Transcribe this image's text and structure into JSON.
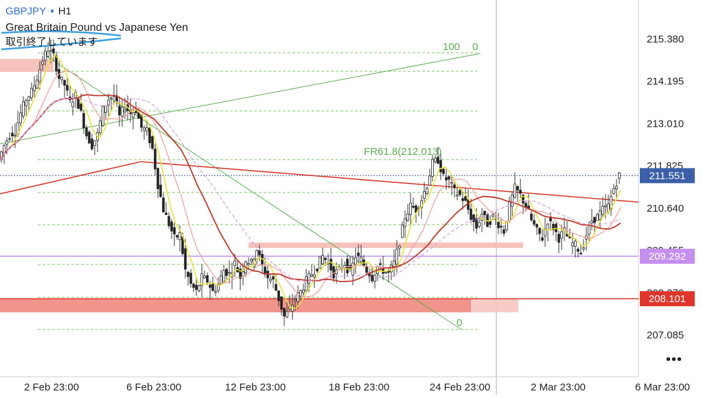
{
  "header": {
    "symbol": "GBPJPY",
    "caret": "▾",
    "timeframe": "H1",
    "description": "Great Britain Pound vs Japanese Yen",
    "status": "取引終了しています"
  },
  "more_icon": "•••",
  "chart_data": {
    "type": "candlestick",
    "symbol": "GBPJPY",
    "timeframe": "H1",
    "y_ticks": [
      "215.380",
      "214.195",
      "213.010",
      "211.825",
      "210.640",
      "209.455",
      "208.270",
      "207.085"
    ],
    "y_range": [
      206.3,
      215.95
    ],
    "x_ticks": [
      "2 Feb 23:00",
      "6 Feb 23:00",
      "12 Feb 23:00",
      "18 Feb 23:00",
      "24 Feb 23:00",
      "2 Mar 23:00",
      "6 Mar 23:00"
    ],
    "price_tags": [
      {
        "label": "211.551",
        "value": 211.551,
        "color": "#3b5fa8"
      },
      {
        "label": "209.292",
        "value": 209.292,
        "color": "#c58ff0"
      },
      {
        "label": "208.101",
        "value": 208.101,
        "color": "#e0352a"
      }
    ],
    "fib_labels": [
      {
        "label": "100",
        "level": "0"
      },
      {
        "label": "FR61.8(212.013)"
      },
      {
        "label": "0"
      }
    ],
    "close_path": [
      [
        0,
        212.0
      ],
      [
        8,
        212.4
      ],
      [
        16,
        212.7
      ],
      [
        24,
        212.8
      ],
      [
        32,
        213.3
      ],
      [
        40,
        213.7
      ],
      [
        48,
        213.9
      ],
      [
        56,
        214.3
      ],
      [
        64,
        214.8
      ],
      [
        72,
        215.1
      ],
      [
        80,
        214.9
      ],
      [
        88,
        214.3
      ],
      [
        96,
        214.1
      ],
      [
        104,
        213.6
      ],
      [
        112,
        213.8
      ],
      [
        120,
        213.3
      ],
      [
        128,
        212.7
      ],
      [
        136,
        212.4
      ],
      [
        144,
        212.7
      ],
      [
        152,
        213.4
      ],
      [
        160,
        213.7
      ],
      [
        168,
        213.8
      ],
      [
        176,
        213.2
      ],
      [
        184,
        213.5
      ],
      [
        192,
        213.3
      ],
      [
        200,
        213.4
      ],
      [
        208,
        212.9
      ],
      [
        216,
        212.8
      ],
      [
        224,
        212.3
      ],
      [
        232,
        211.3
      ],
      [
        240,
        210.6
      ],
      [
        248,
        210.2
      ],
      [
        256,
        209.8
      ],
      [
        264,
        209.9
      ],
      [
        272,
        208.9
      ],
      [
        280,
        208.5
      ],
      [
        288,
        208.3
      ],
      [
        296,
        208.7
      ],
      [
        304,
        208.6
      ],
      [
        312,
        208.3
      ],
      [
        320,
        208.5
      ],
      [
        328,
        208.9
      ],
      [
        336,
        208.8
      ],
      [
        344,
        209.1
      ],
      [
        352,
        208.7
      ],
      [
        360,
        209.2
      ],
      [
        368,
        209.1
      ],
      [
        376,
        209.5
      ],
      [
        384,
        209.0
      ],
      [
        392,
        208.7
      ],
      [
        400,
        208.6
      ],
      [
        408,
        208.1
      ],
      [
        416,
        207.6
      ],
      [
        424,
        207.8
      ],
      [
        432,
        208.1
      ],
      [
        440,
        208.3
      ],
      [
        448,
        208.6
      ],
      [
        456,
        208.8
      ],
      [
        464,
        209.0
      ],
      [
        472,
        209.3
      ],
      [
        480,
        209.1
      ],
      [
        488,
        208.8
      ],
      [
        496,
        208.9
      ],
      [
        504,
        209.1
      ],
      [
        512,
        208.8
      ],
      [
        520,
        209.3
      ],
      [
        528,
        209.2
      ],
      [
        536,
        208.9
      ],
      [
        544,
        208.7
      ],
      [
        552,
        209.0
      ],
      [
        560,
        208.9
      ],
      [
        568,
        208.8
      ],
      [
        576,
        209.1
      ],
      [
        584,
        209.7
      ],
      [
        592,
        210.4
      ],
      [
        600,
        210.7
      ],
      [
        608,
        210.6
      ],
      [
        616,
        210.9
      ],
      [
        624,
        211.3
      ],
      [
        632,
        211.9
      ],
      [
        640,
        212.0
      ],
      [
        648,
        211.5
      ],
      [
        656,
        211.4
      ],
      [
        664,
        211.1
      ],
      [
        672,
        211.0
      ],
      [
        680,
        210.8
      ],
      [
        688,
        210.4
      ],
      [
        696,
        210.1
      ],
      [
        704,
        210.5
      ],
      [
        712,
        210.2
      ],
      [
        720,
        210.4
      ],
      [
        728,
        210.2
      ],
      [
        736,
        210.0
      ],
      [
        744,
        210.7
      ],
      [
        752,
        211.2
      ],
      [
        760,
        211.0
      ],
      [
        768,
        210.7
      ],
      [
        776,
        210.3
      ],
      [
        784,
        210.0
      ],
      [
        792,
        209.8
      ],
      [
        800,
        210.3
      ],
      [
        808,
        210.1
      ],
      [
        816,
        209.8
      ],
      [
        824,
        210.0
      ],
      [
        832,
        209.7
      ],
      [
        840,
        209.6
      ],
      [
        848,
        209.4
      ],
      [
        856,
        209.9
      ],
      [
        864,
        210.3
      ],
      [
        872,
        210.4
      ],
      [
        880,
        210.6
      ],
      [
        888,
        210.7
      ],
      [
        896,
        211.2
      ],
      [
        904,
        211.55
      ]
    ]
  }
}
